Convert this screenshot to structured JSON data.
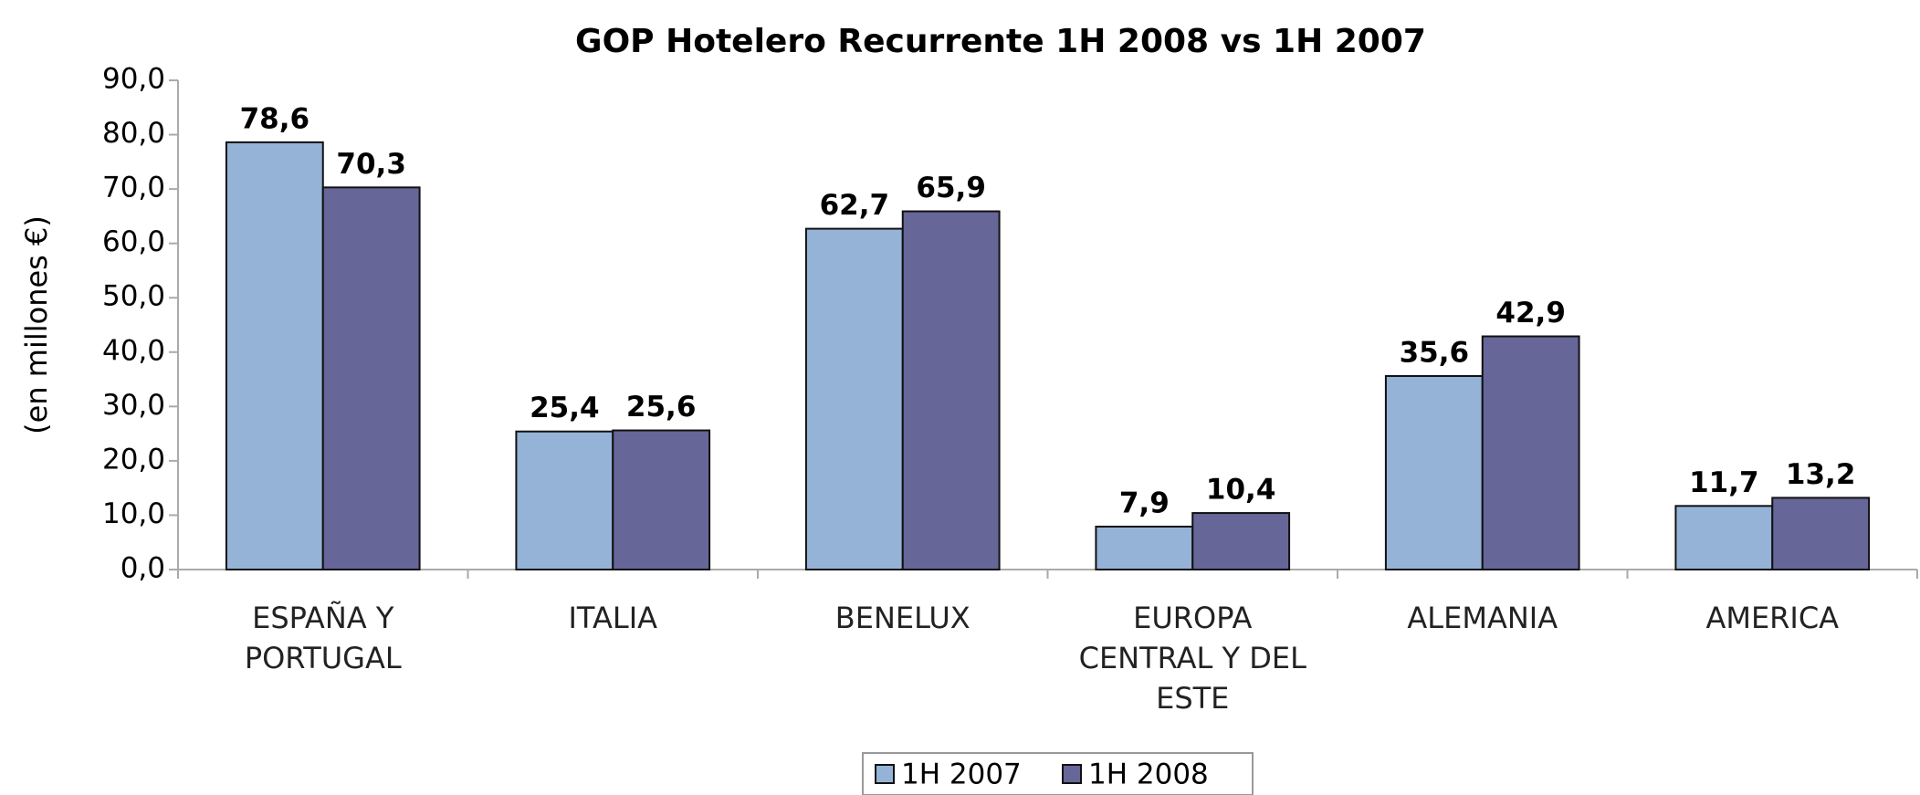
{
  "chart_data": {
    "type": "bar",
    "title": "GOP Hotelero Recurrente 1H 2008 vs 1H 2007",
    "y_label": "(en millones €)",
    "categories": [
      "ESPAÑA Y PORTUGAL",
      "ITALIA",
      "BENELUX",
      "EUROPA CENTRAL Y DEL ESTE",
      "ALEMANIA",
      "AMERICA"
    ],
    "series": [
      {
        "name": "1H 2007",
        "color": "#95b3d7",
        "values": [
          78.6,
          25.4,
          62.7,
          7.9,
          35.6,
          11.7
        ],
        "value_labels": [
          "78,6",
          "25,4",
          "62,7",
          "7,9",
          "35,6",
          "11,7"
        ]
      },
      {
        "name": "1H 2008",
        "color": "#666699",
        "values": [
          70.3,
          25.6,
          65.9,
          10.4,
          42.9,
          13.2
        ],
        "value_labels": [
          "70,3",
          "25,6",
          "65,9",
          "10,4",
          "42,9",
          "13,2"
        ]
      }
    ],
    "ylim": [
      0,
      90
    ],
    "yticks": [
      {
        "value": 0,
        "label": "0,0"
      },
      {
        "value": 10,
        "label": "10,0"
      },
      {
        "value": 20,
        "label": "20,0"
      },
      {
        "value": 30,
        "label": "30,0"
      },
      {
        "value": 40,
        "label": "40,0"
      },
      {
        "value": 50,
        "label": "50,0"
      },
      {
        "value": 60,
        "label": "60,0"
      },
      {
        "value": 70,
        "label": "70,0"
      },
      {
        "value": 80,
        "label": "80,0"
      },
      {
        "value": 90,
        "label": "90,0"
      }
    ],
    "grid": false,
    "legend": "bottom"
  }
}
